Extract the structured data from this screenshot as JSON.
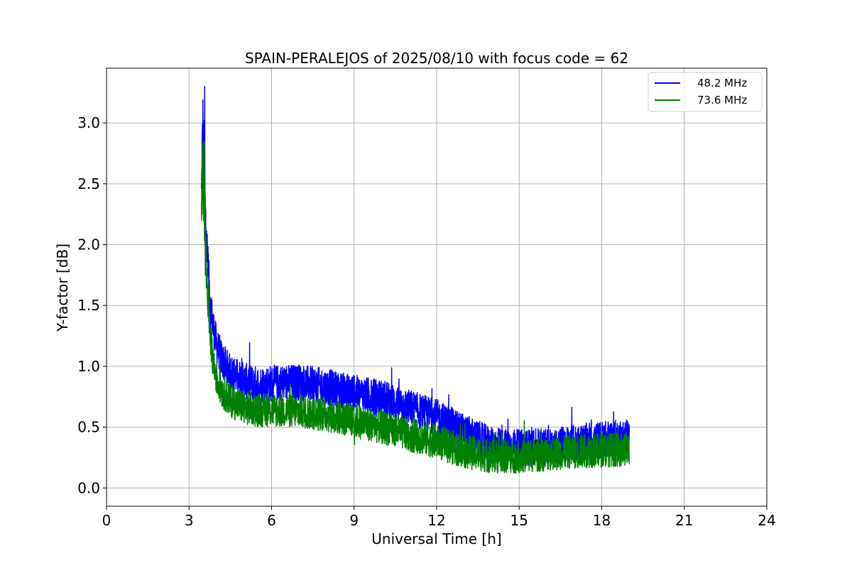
{
  "chart_data": {
    "type": "line",
    "title": "SPAIN-PERALEJOS of 2025/08/10 with focus code = 62",
    "xlabel": "Universal Time [h]",
    "ylabel": "Y-factor [dB]",
    "xlim": [
      0,
      24
    ],
    "ylim": [
      -0.15,
      3.45
    ],
    "xticks": [
      0,
      3,
      6,
      9,
      12,
      15,
      18,
      21,
      24
    ],
    "xtick_labels": [
      "0",
      "3",
      "6",
      "9",
      "12",
      "15",
      "18",
      "21",
      "24"
    ],
    "yticks": [
      0.0,
      0.5,
      1.0,
      1.5,
      2.0,
      2.5,
      3.0
    ],
    "ytick_labels": [
      "0.0",
      "0.5",
      "1.0",
      "1.5",
      "2.0",
      "2.5",
      "3.0"
    ],
    "grid": true,
    "legend_position": "top-right",
    "series": [
      {
        "name": "48.2 MHz",
        "color": "#0000ff",
        "x": [
          3.45,
          3.5,
          3.6,
          3.7,
          3.8,
          3.9,
          4.0,
          4.2,
          4.5,
          5.0,
          5.5,
          6.0,
          7.0,
          8.0,
          9.0,
          10.0,
          11.0,
          12.0,
          13.0,
          14.0,
          15.0,
          16.0,
          17.0,
          18.0,
          19.0
        ],
        "y_center": [
          2.4,
          3.0,
          2.2,
          1.75,
          1.45,
          1.3,
          1.18,
          1.05,
          0.95,
          0.88,
          0.85,
          0.86,
          0.87,
          0.83,
          0.78,
          0.74,
          0.66,
          0.58,
          0.46,
          0.35,
          0.33,
          0.34,
          0.37,
          0.4,
          0.42
        ],
        "y_spread": [
          0.2,
          0.3,
          0.25,
          0.2,
          0.18,
          0.16,
          0.15,
          0.15,
          0.15,
          0.15,
          0.15,
          0.15,
          0.15,
          0.15,
          0.15,
          0.15,
          0.15,
          0.15,
          0.15,
          0.15,
          0.15,
          0.15,
          0.15,
          0.15,
          0.15
        ],
        "y_max": 3.3,
        "y_min": 0.0
      },
      {
        "name": "73.6 MHz",
        "color": "#008000",
        "x": [
          3.45,
          3.5,
          3.6,
          3.7,
          3.8,
          3.9,
          4.0,
          4.2,
          4.5,
          5.0,
          5.5,
          6.0,
          7.0,
          8.0,
          9.0,
          10.0,
          11.0,
          12.0,
          13.0,
          14.0,
          15.0,
          16.0,
          17.0,
          18.0,
          19.0
        ],
        "y_center": [
          2.3,
          2.65,
          1.9,
          1.5,
          1.2,
          1.0,
          0.9,
          0.8,
          0.72,
          0.66,
          0.64,
          0.64,
          0.63,
          0.6,
          0.55,
          0.5,
          0.44,
          0.38,
          0.3,
          0.26,
          0.26,
          0.28,
          0.3,
          0.31,
          0.32
        ],
        "y_spread": [
          0.2,
          0.25,
          0.22,
          0.18,
          0.16,
          0.15,
          0.14,
          0.14,
          0.14,
          0.14,
          0.14,
          0.14,
          0.14,
          0.14,
          0.14,
          0.14,
          0.14,
          0.14,
          0.14,
          0.14,
          0.14,
          0.14,
          0.14,
          0.14,
          0.14
        ],
        "y_max": 2.85,
        "y_min": 0.02
      }
    ]
  }
}
